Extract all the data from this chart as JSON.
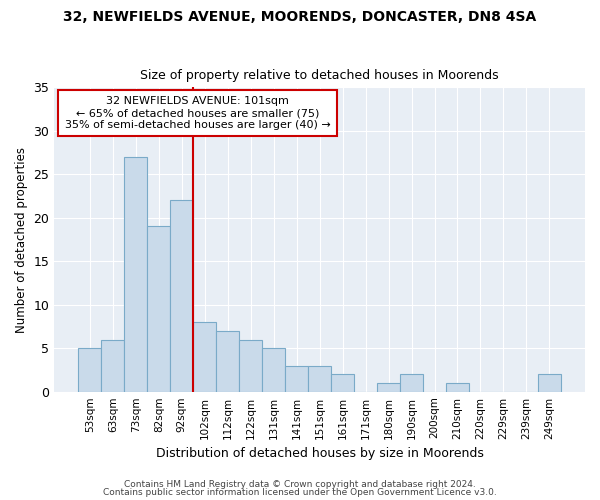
{
  "title1": "32, NEWFIELDS AVENUE, MOORENDS, DONCASTER, DN8 4SA",
  "title2": "Size of property relative to detached houses in Moorends",
  "xlabel": "Distribution of detached houses by size in Moorends",
  "ylabel": "Number of detached properties",
  "bins": [
    "53sqm",
    "63sqm",
    "73sqm",
    "82sqm",
    "92sqm",
    "102sqm",
    "112sqm",
    "122sqm",
    "131sqm",
    "141sqm",
    "151sqm",
    "161sqm",
    "171sqm",
    "180sqm",
    "190sqm",
    "200sqm",
    "210sqm",
    "220sqm",
    "229sqm",
    "239sqm",
    "249sqm"
  ],
  "values": [
    5,
    6,
    27,
    19,
    22,
    8,
    7,
    6,
    5,
    3,
    3,
    2,
    0,
    1,
    2,
    0,
    1,
    0,
    0,
    0,
    2
  ],
  "annotation_title": "32 NEWFIELDS AVENUE: 101sqm",
  "annotation_line1": "← 65% of detached houses are smaller (75)",
  "annotation_line2": "35% of semi-detached houses are larger (40) →",
  "bar_color": "#c9daea",
  "bar_edge_color": "#7aaac8",
  "vline_color": "#cc0000",
  "vline_x_idx": 5,
  "fig_bg_color": "#ffffff",
  "plot_bg_color": "#e8eef5",
  "grid_color": "#ffffff",
  "annotation_box_color": "#ffffff",
  "annotation_box_edge": "#cc0000",
  "footer_line1": "Contains HM Land Registry data © Crown copyright and database right 2024.",
  "footer_line2": "Contains public sector information licensed under the Open Government Licence v3.0.",
  "ylim": [
    0,
    35
  ],
  "yticks": [
    0,
    5,
    10,
    15,
    20,
    25,
    30,
    35
  ]
}
